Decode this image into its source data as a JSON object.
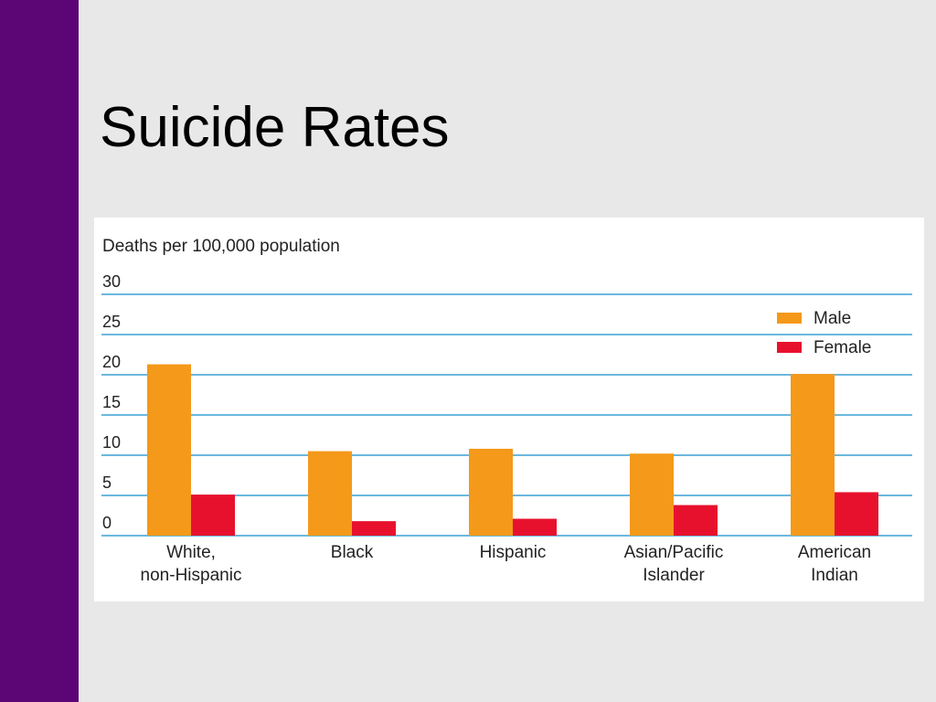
{
  "slide": {
    "title": "Suicide Rates"
  },
  "colors": {
    "sidebar": "#5c0676",
    "background": "#e8e8e8",
    "male": "#f4991a",
    "female": "#e8112d",
    "gridline": "#3aa0d4"
  },
  "chart_data": {
    "type": "bar",
    "ylabel": "Deaths per 100,000 population",
    "ylim": [
      0,
      30
    ],
    "yticks": [
      0,
      5,
      10,
      15,
      20,
      25,
      30
    ],
    "grid": true,
    "legend_position": "top-right",
    "categories": [
      [
        "White,",
        "non-Hispanic"
      ],
      [
        "Black"
      ],
      [
        "Hispanic"
      ],
      [
        "Asian/Pacific",
        "Islander"
      ],
      [
        "American",
        "Indian"
      ]
    ],
    "series": [
      {
        "name": "Male",
        "color": "#f4991a",
        "values": [
          21.3,
          10.5,
          10.8,
          10.2,
          20.1
        ]
      },
      {
        "name": "Female",
        "color": "#e8112d",
        "values": [
          5.1,
          1.8,
          2.1,
          3.8,
          5.4
        ]
      }
    ]
  }
}
